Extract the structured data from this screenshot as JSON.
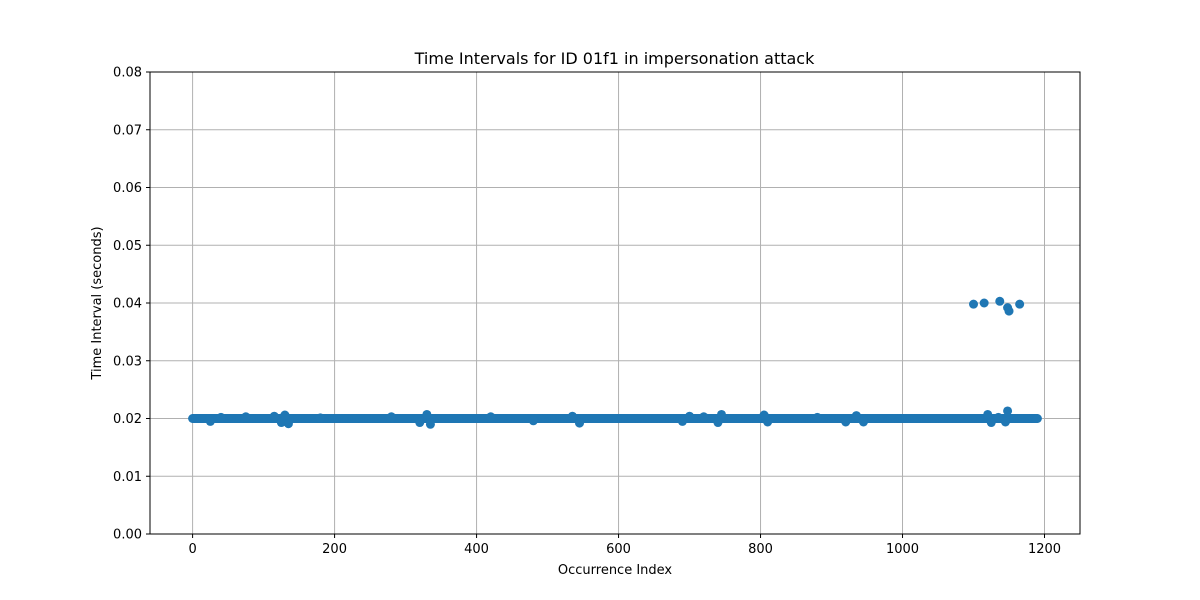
{
  "chart_data": {
    "type": "scatter",
    "title": "Time Intervals for ID 01f1 in impersonation attack",
    "xlabel": "Occurrence Index",
    "ylabel": "Time Interval (seconds)",
    "xlim": [
      -60,
      1250
    ],
    "ylim": [
      0,
      0.08
    ],
    "xticks": [
      "0",
      "200",
      "400",
      "600",
      "800",
      "1000",
      "1200"
    ],
    "yticks": [
      "0.00",
      "0.01",
      "0.02",
      "0.03",
      "0.04",
      "0.05",
      "0.06",
      "0.07",
      "0.08"
    ],
    "grid": true,
    "color": "#1f77b4",
    "series": [
      {
        "x_range": [
          0,
          1190
        ],
        "baseline": 0.02,
        "points": [
          {
            "x": 25,
            "y": 0.0195
          },
          {
            "x": 40,
            "y": 0.0202
          },
          {
            "x": 75,
            "y": 0.0203
          },
          {
            "x": 115,
            "y": 0.0204
          },
          {
            "x": 125,
            "y": 0.0193
          },
          {
            "x": 130,
            "y": 0.0206
          },
          {
            "x": 135,
            "y": 0.0191
          },
          {
            "x": 180,
            "y": 0.0201
          },
          {
            "x": 280,
            "y": 0.0203
          },
          {
            "x": 320,
            "y": 0.0193
          },
          {
            "x": 330,
            "y": 0.0207
          },
          {
            "x": 335,
            "y": 0.019
          },
          {
            "x": 420,
            "y": 0.0203
          },
          {
            "x": 480,
            "y": 0.0196
          },
          {
            "x": 535,
            "y": 0.0204
          },
          {
            "x": 545,
            "y": 0.0192
          },
          {
            "x": 690,
            "y": 0.0195
          },
          {
            "x": 700,
            "y": 0.0204
          },
          {
            "x": 720,
            "y": 0.0203
          },
          {
            "x": 740,
            "y": 0.0193
          },
          {
            "x": 745,
            "y": 0.0207
          },
          {
            "x": 805,
            "y": 0.0206
          },
          {
            "x": 810,
            "y": 0.0194
          },
          {
            "x": 880,
            "y": 0.0202
          },
          {
            "x": 920,
            "y": 0.0194
          },
          {
            "x": 935,
            "y": 0.0205
          },
          {
            "x": 945,
            "y": 0.0194
          },
          {
            "x": 1100,
            "y": 0.0398
          },
          {
            "x": 1115,
            "y": 0.04
          },
          {
            "x": 1120,
            "y": 0.0207
          },
          {
            "x": 1125,
            "y": 0.0193
          },
          {
            "x": 1135,
            "y": 0.0202
          },
          {
            "x": 1137,
            "y": 0.0403
          },
          {
            "x": 1145,
            "y": 0.0194
          },
          {
            "x": 1148,
            "y": 0.0213
          },
          {
            "x": 1148,
            "y": 0.0392
          },
          {
            "x": 1150,
            "y": 0.0386
          },
          {
            "x": 1165,
            "y": 0.0398
          }
        ]
      }
    ]
  }
}
